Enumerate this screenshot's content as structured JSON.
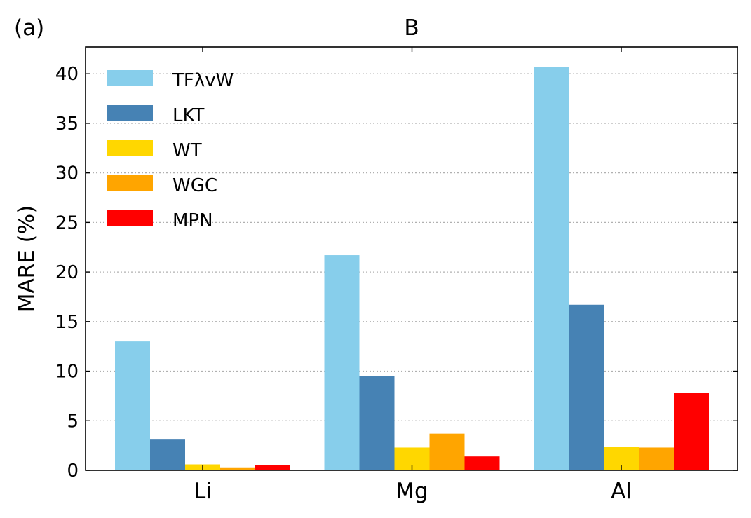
{
  "panel_label": "(a)",
  "chart_data": {
    "type": "bar",
    "title": "B",
    "xlabel": "",
    "ylabel": "MARE (%)",
    "categories": [
      "Li",
      "Mg",
      "Al"
    ],
    "ylim": [
      0,
      42.7
    ],
    "yticks": [
      0,
      5,
      10,
      15,
      20,
      25,
      30,
      35,
      40
    ],
    "grid": "horizontal dotted",
    "legend_position": "top-left",
    "series": [
      {
        "name": "TFλvW",
        "color": "#87CEEB",
        "values": [
          13.0,
          21.7,
          40.7
        ]
      },
      {
        "name": "LKT",
        "color": "#4682B4",
        "values": [
          3.1,
          9.5,
          16.7
        ]
      },
      {
        "name": "WT",
        "color": "#FFD700",
        "values": [
          0.6,
          2.3,
          2.4
        ]
      },
      {
        "name": "WGC",
        "color": "#FFA500",
        "values": [
          0.3,
          3.7,
          2.3
        ]
      },
      {
        "name": "MPN",
        "color": "#FF0000",
        "values": [
          0.5,
          1.4,
          7.8
        ]
      }
    ]
  }
}
